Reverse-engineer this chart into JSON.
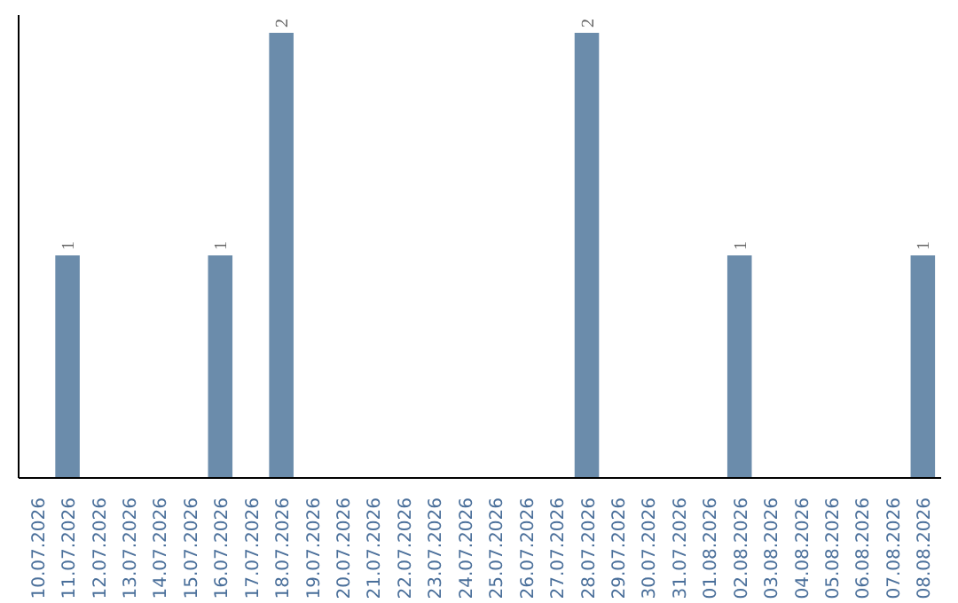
{
  "chart_data": {
    "type": "bar",
    "categories": [
      "10.07.2026",
      "11.07.2026",
      "12.07.2026",
      "13.07.2026",
      "14.07.2026",
      "15.07.2026",
      "16.07.2026",
      "17.07.2026",
      "18.07.2026",
      "19.07.2026",
      "20.07.2026",
      "21.07.2026",
      "22.07.2026",
      "23.07.2026",
      "24.07.2026",
      "25.07.2026",
      "26.07.2026",
      "27.07.2026",
      "28.07.2026",
      "29.07.2026",
      "30.07.2026",
      "31.07.2026",
      "01.08.2026",
      "02.08.2026",
      "03.08.2026",
      "04.08.2026",
      "05.08.2026",
      "06.08.2026",
      "07.08.2026",
      "08.08.2026"
    ],
    "values": [
      0,
      1,
      0,
      0,
      0,
      0,
      1,
      0,
      2,
      0,
      0,
      0,
      0,
      0,
      0,
      0,
      0,
      0,
      2,
      0,
      0,
      0,
      0,
      1,
      0,
      0,
      0,
      0,
      0,
      1
    ],
    "value_labels": [
      null,
      "1",
      null,
      null,
      null,
      null,
      "1",
      null,
      "2",
      null,
      null,
      null,
      null,
      null,
      null,
      null,
      null,
      null,
      "2",
      null,
      null,
      null,
      null,
      "1",
      null,
      null,
      null,
      null,
      null,
      "1"
    ],
    "color": "#6b8cab"
  }
}
